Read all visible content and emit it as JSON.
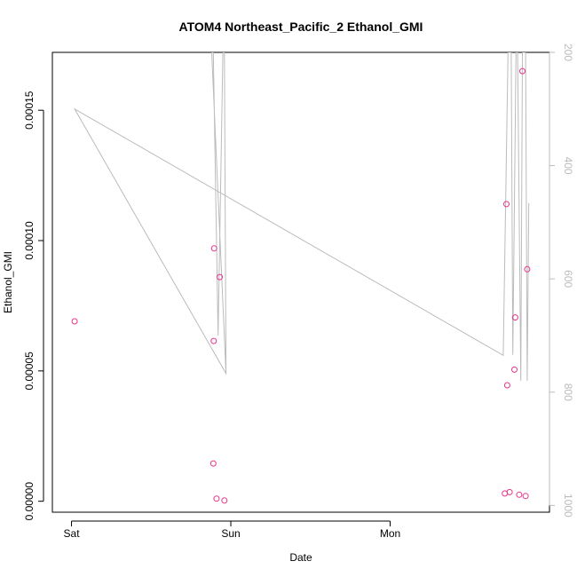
{
  "chart_data": {
    "type": "scatter",
    "title": "ATOM4 Northeast_Pacific_2 Ethanol_GMI",
    "xlabel": "Date",
    "ylabel": "Ethanol_GMI",
    "x_ticks": [
      "Sat",
      "Sun",
      "Mon"
    ],
    "x_tick_values": [
      0,
      1,
      2
    ],
    "xlim": [
      -0.12,
      3.0
    ],
    "ylim": [
      -4.2e-06,
      0.0001722
    ],
    "y_ticks": [
      0.0,
      5e-05,
      0.0001,
      0.00015
    ],
    "y_tick_labels": [
      "0.00000",
      "0.00005",
      "0.00010",
      "0.00015"
    ],
    "y2_ticks": [
      200,
      400,
      600,
      800,
      1000
    ],
    "y2_tick_labels": [
      "200",
      "400",
      "600",
      "800",
      "1000"
    ],
    "y2lim": [
      1012,
      200
    ],
    "colors": {
      "points": "#e8348a",
      "line": "#bbbbbb",
      "axis": "#000000",
      "right_axis": "#bbbbbb"
    },
    "points": [
      {
        "x": 0.02,
        "y": 6.9e-05
      },
      {
        "x": 0.89,
        "y": 1.45e-05
      },
      {
        "x": 0.893,
        "y": 6.15e-05
      },
      {
        "x": 0.895,
        "y": 9.7e-05
      },
      {
        "x": 0.91,
        "y": 1e-06
      },
      {
        "x": 0.93,
        "y": 8.6e-05
      },
      {
        "x": 0.96,
        "y": 3e-07
      },
      {
        "x": 2.72,
        "y": 3e-06
      },
      {
        "x": 2.73,
        "y": 0.000114
      },
      {
        "x": 2.735,
        "y": 4.45e-05
      },
      {
        "x": 2.75,
        "y": 3.5e-06
      },
      {
        "x": 2.78,
        "y": 5.05e-05
      },
      {
        "x": 2.785,
        "y": 7.05e-05
      },
      {
        "x": 2.81,
        "y": 2.5e-06
      },
      {
        "x": 2.83,
        "y": 0.000165
      },
      {
        "x": 2.85,
        "y": 2e-06
      },
      {
        "x": 2.86,
        "y": 8.9e-05
      }
    ],
    "pressure_line": [
      {
        "x": 0.02,
        "y2": 300
      },
      {
        "x": 0.97,
        "y2": 767
      },
      {
        "x": 0.88,
        "y2": 200
      },
      {
        "x": 0.89,
        "y2": 200
      },
      {
        "x": 0.92,
        "y2": 700
      },
      {
        "x": 0.95,
        "y2": 200
      },
      {
        "x": 0.96,
        "y2": 200
      },
      {
        "x": 0.97,
        "y2": 767
      },
      {
        "x": 0.02,
        "y2": 300
      },
      {
        "x": 2.71,
        "y2": 735
      },
      {
        "x": 2.74,
        "y2": 200
      },
      {
        "x": 2.76,
        "y2": 200
      },
      {
        "x": 2.77,
        "y2": 734
      },
      {
        "x": 2.79,
        "y2": 200
      },
      {
        "x": 2.8,
        "y2": 200
      },
      {
        "x": 2.82,
        "y2": 780
      },
      {
        "x": 2.83,
        "y2": 200
      },
      {
        "x": 2.85,
        "y2": 200
      },
      {
        "x": 2.86,
        "y2": 780
      },
      {
        "x": 2.87,
        "y2": 466
      }
    ]
  }
}
